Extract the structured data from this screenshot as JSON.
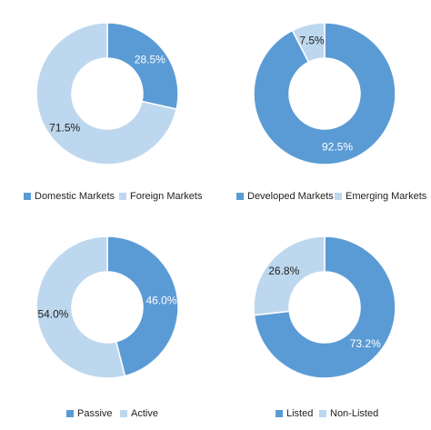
{
  "colors": {
    "primary": "#5b9bd5",
    "secondary": "#bdd7ee"
  },
  "chart_data": [
    {
      "type": "pie",
      "variant": "donut",
      "title": "",
      "categories": [
        "Domestic Markets",
        "Foreign Markets"
      ],
      "values": [
        28.5,
        71.5
      ],
      "labels": [
        "28.5%",
        "71.5%"
      ],
      "colors": [
        "#5b9bd5",
        "#bdd7ee"
      ],
      "label_colors": [
        "#ffffff",
        "#222222"
      ],
      "legend": "bottom"
    },
    {
      "type": "pie",
      "variant": "donut",
      "title": "",
      "categories": [
        "Developed Markets",
        "Emerging Markets"
      ],
      "values": [
        92.5,
        7.5
      ],
      "labels": [
        "92.5%",
        "7.5%"
      ],
      "colors": [
        "#5b9bd5",
        "#bdd7ee"
      ],
      "label_colors": [
        "#ffffff",
        "#222222"
      ],
      "legend": "bottom"
    },
    {
      "type": "pie",
      "variant": "donut",
      "title": "",
      "categories": [
        "Passive",
        "Active"
      ],
      "values": [
        46.0,
        54.0
      ],
      "labels": [
        "46.0%",
        "54.0%"
      ],
      "colors": [
        "#5b9bd5",
        "#bdd7ee"
      ],
      "label_colors": [
        "#ffffff",
        "#222222"
      ],
      "legend": "bottom"
    },
    {
      "type": "pie",
      "variant": "donut",
      "title": "",
      "categories": [
        "Listed",
        "Non-Listed"
      ],
      "values": [
        73.2,
        26.8
      ],
      "labels": [
        "73.2%",
        "26.8%"
      ],
      "colors": [
        "#5b9bd5",
        "#bdd7ee"
      ],
      "label_colors": [
        "#ffffff",
        "#222222"
      ],
      "legend": "bottom"
    }
  ]
}
